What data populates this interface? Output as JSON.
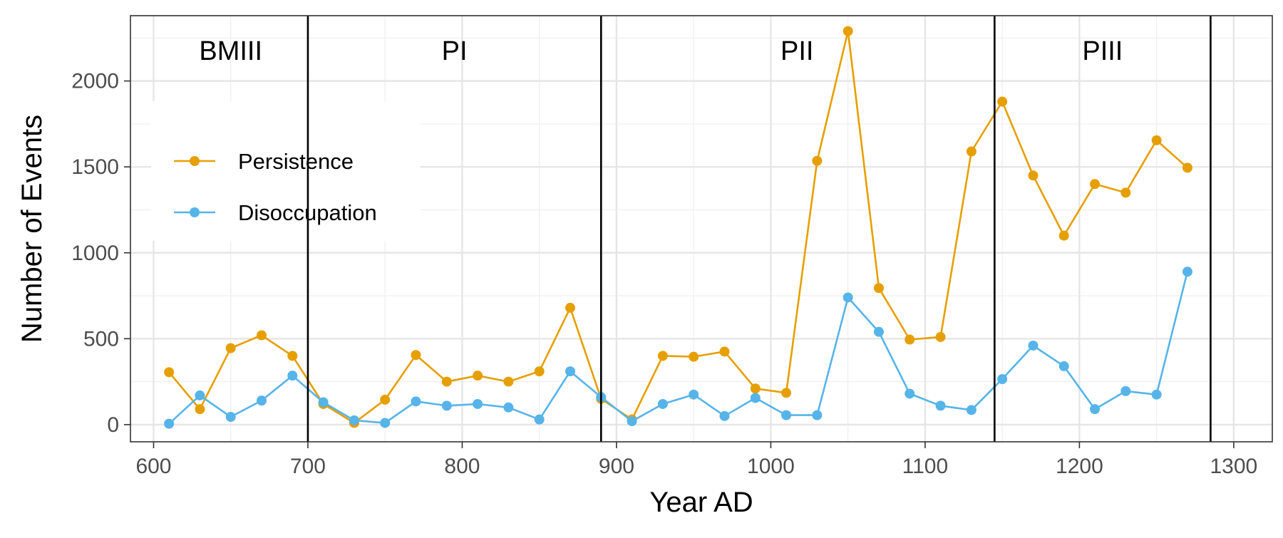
{
  "chart_data": {
    "type": "line",
    "title": "",
    "xlabel": "Year AD",
    "ylabel": "Number of Events",
    "xlim": [
      585,
      1325
    ],
    "ylim": [
      -100,
      2380
    ],
    "x_ticks": [
      600,
      700,
      800,
      900,
      1000,
      1100,
      1200,
      1300
    ],
    "y_ticks": [
      0,
      500,
      1000,
      1500,
      2000
    ],
    "grid": true,
    "legend_position": "top-left",
    "x": [
      610,
      630,
      650,
      670,
      690,
      710,
      730,
      750,
      770,
      790,
      810,
      830,
      850,
      870,
      890,
      910,
      930,
      950,
      970,
      990,
      1010,
      1030,
      1050,
      1070,
      1090,
      1110,
      1130,
      1150,
      1170,
      1190,
      1210,
      1230,
      1250,
      1270
    ],
    "series": [
      {
        "name": "Persistence",
        "color": "#E69F00",
        "values": [
          305,
          90,
          445,
          520,
          400,
          120,
          10,
          145,
          405,
          250,
          285,
          250,
          310,
          680,
          150,
          30,
          400,
          395,
          425,
          210,
          185,
          1535,
          2290,
          795,
          495,
          510,
          1590,
          1880,
          1450,
          1100,
          1400,
          1350,
          1655,
          1495
        ]
      },
      {
        "name": "Disoccupation",
        "color": "#56B4E9",
        "values": [
          5,
          170,
          45,
          140,
          285,
          130,
          25,
          10,
          135,
          110,
          120,
          100,
          30,
          310,
          160,
          20,
          120,
          175,
          50,
          155,
          55,
          55,
          740,
          540,
          180,
          110,
          85,
          265,
          460,
          340,
          90,
          195,
          175,
          890
        ]
      }
    ],
    "period_boundaries": [
      700,
      890,
      1145,
      1285
    ],
    "periods": [
      {
        "label": "BMIII",
        "x": 650
      },
      {
        "label": "PI",
        "x": 795
      },
      {
        "label": "PII",
        "x": 1017
      },
      {
        "label": "PIII",
        "x": 1215
      }
    ]
  }
}
